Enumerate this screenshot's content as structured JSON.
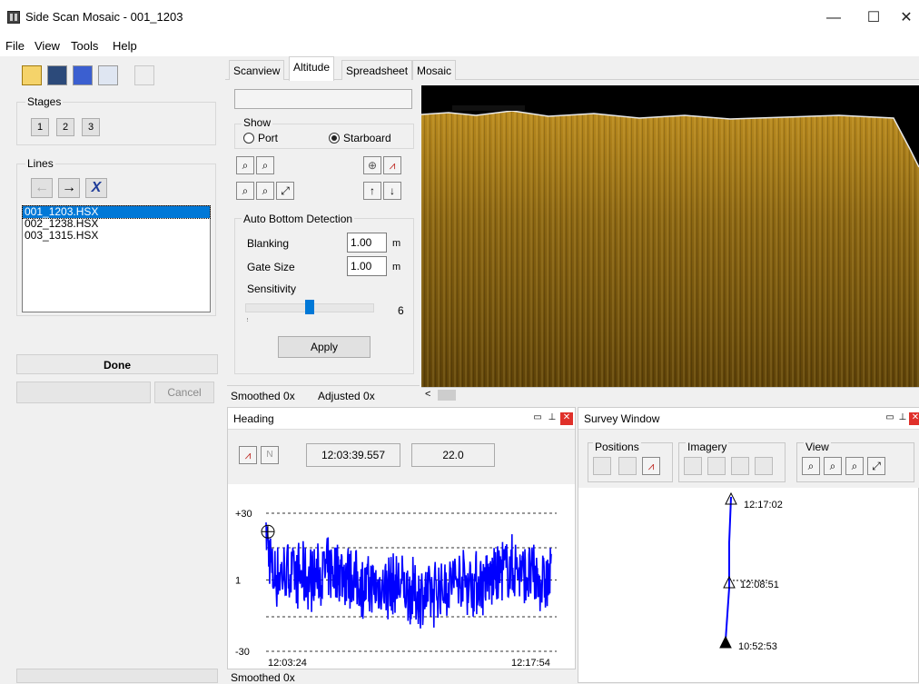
{
  "window": {
    "title": "Side Scan Mosaic - 001_1203",
    "minimize": "—",
    "maximize": "☐",
    "close": "✕"
  },
  "menu": [
    "File",
    "View",
    "Tools",
    "Help"
  ],
  "toolbar": {
    "icons": [
      "open-folder-icon",
      "save-icon",
      "pen-icon",
      "list-icon",
      "undo-icon"
    ]
  },
  "stages": {
    "label": "Stages",
    "buttons": [
      "1",
      "2",
      "3"
    ]
  },
  "lines": {
    "label": "Lines",
    "items": [
      "001_1203.HSX",
      "002_1238.HSX",
      "003_1315.HSX"
    ],
    "selected_index": 0
  },
  "status": {
    "done": "Done",
    "cancel": "Cancel"
  },
  "tabs": [
    "Scanview",
    "Altitude",
    "Spreadsheet",
    "Mosaic"
  ],
  "active_tab": "Altitude",
  "altitude": {
    "show_label": "Show",
    "port_label": "Port",
    "starboard_label": "Starboard",
    "selected_side": "Starboard",
    "auto_bottom_label": "Auto Bottom Detection",
    "blanking_label": "Blanking",
    "blanking_value": "1.00",
    "blanking_unit": "m",
    "gate_label": "Gate Size",
    "gate_value": "1.00",
    "gate_unit": "m",
    "sensitivity_label": "Sensitivity",
    "sensitivity_value": "6",
    "sensitivity_fraction": 0.5,
    "apply_label": "Apply",
    "smoothed": "Smoothed 0x",
    "adjusted": "Adjusted 0x"
  },
  "heading": {
    "title": "Heading",
    "time": "12:03:39.557",
    "value": "22.0",
    "n_button": "N",
    "smoothed": "Smoothed 0x"
  },
  "survey": {
    "title": "Survey Window",
    "positions_label": "Positions",
    "imagery_label": "Imagery",
    "view_label": "View"
  },
  "chart_data": [
    {
      "type": "line",
      "y_ticks": [
        "+30",
        "1",
        "-30"
      ],
      "x_ticks": [
        "12:03:24",
        "12:17:54"
      ],
      "ylim": [
        -30,
        30
      ],
      "reference_lines": [
        30,
        15,
        1,
        -15,
        -30
      ],
      "series": [
        {
          "color": "#0000ff"
        }
      ]
    },
    {
      "type": "scatter",
      "labels": [
        "12:17:02",
        "12:08:51",
        "10:52:53"
      ],
      "color": "#0000ff"
    }
  ]
}
